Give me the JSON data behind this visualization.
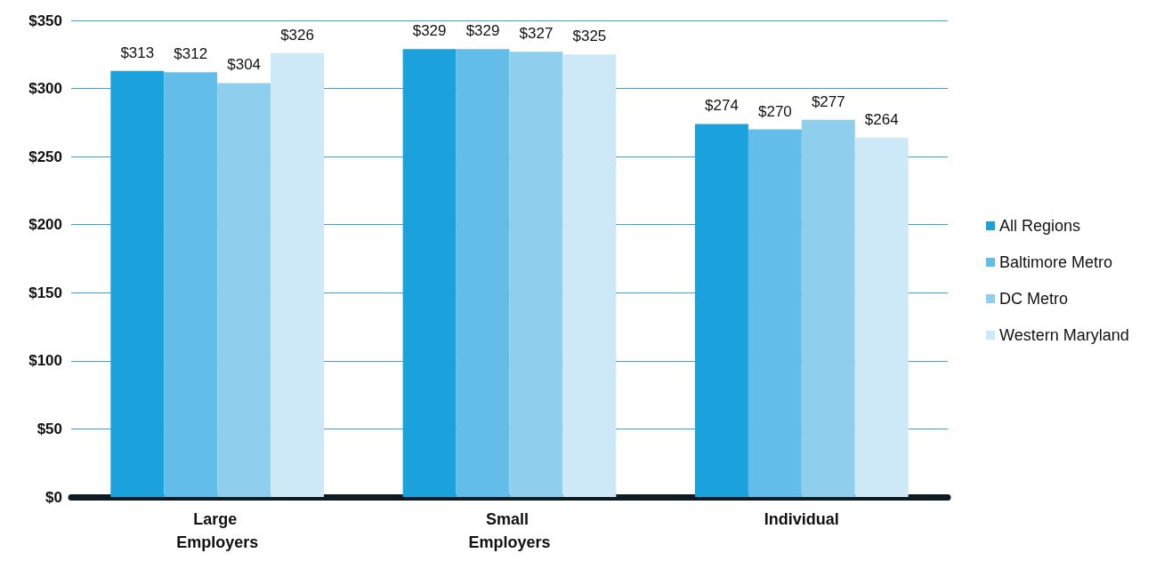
{
  "chart_data": {
    "type": "bar",
    "categories": [
      "Large Employers",
      "Small Employers",
      "Individual"
    ],
    "series": [
      {
        "name": "All Regions",
        "color": "#1ba1dc",
        "values": [
          313,
          329,
          274
        ],
        "value_labels": [
          "$313",
          "$329",
          "$274"
        ]
      },
      {
        "name": "Baltimore Metro",
        "color": "#62bee9",
        "values": [
          312,
          329,
          270
        ],
        "value_labels": [
          "$312",
          "$329",
          "$270"
        ]
      },
      {
        "name": "DC Metro",
        "color": "#8ecfee",
        "values": [
          304,
          327,
          277
        ],
        "value_labels": [
          "$304",
          "$327",
          "$277"
        ]
      },
      {
        "name": "Western Maryland",
        "color": "#cde9f7",
        "values": [
          326,
          325,
          264
        ],
        "value_labels": [
          "$326",
          "$325",
          "$264"
        ]
      }
    ],
    "ylim": [
      0,
      350
    ],
    "yticks": [
      {
        "value": 0,
        "label": "$0"
      },
      {
        "value": 50,
        "label": "$50"
      },
      {
        "value": 100,
        "label": "$100"
      },
      {
        "value": 150,
        "label": "$150"
      },
      {
        "value": 200,
        "label": "$200"
      },
      {
        "value": 250,
        "label": "$250"
      },
      {
        "value": 300,
        "label": "$300"
      },
      {
        "value": 350,
        "label": "$350"
      }
    ],
    "grid": "y",
    "legend": "right"
  }
}
